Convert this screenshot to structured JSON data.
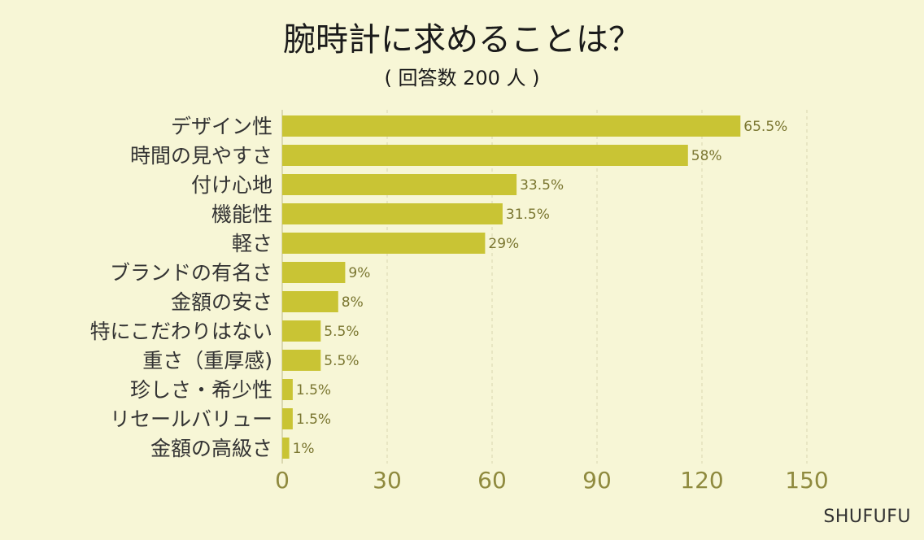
{
  "chart_data": {
    "type": "bar",
    "orientation": "horizontal",
    "title": "腕時計に求めることは？",
    "subtitle": "( 回答数 200 人 )",
    "categories": [
      "デザイン性",
      "時間の見やすさ",
      "付け心地",
      "機能性",
      "軽さ",
      "ブランドの有名さ",
      "金額の安さ",
      "特にこだわりはない",
      "重さ（重厚感)",
      "珍しさ・希少性",
      "リセールバリュー",
      "金額の高級さ"
    ],
    "values": [
      131,
      116,
      67,
      63,
      58,
      18,
      16,
      11,
      11,
      3,
      3,
      2
    ],
    "value_labels": [
      "65.5%",
      "58%",
      "33.5%",
      "31.5%",
      "29%",
      "9%",
      "8%",
      "5.5%",
      "5.5%",
      "1.5%",
      "1.5%",
      "1%"
    ],
    "xlim": [
      0,
      150
    ],
    "xticks": [
      0,
      30,
      60,
      90,
      120,
      150
    ],
    "xtick_labels": [
      "0",
      "30",
      "60",
      "90",
      "120",
      "150"
    ],
    "grid": true,
    "bar_color": "#c9c434",
    "grid_color": "#d8d6b0",
    "background_color": "#f7f6d6"
  },
  "brand": "SHUFUFU"
}
